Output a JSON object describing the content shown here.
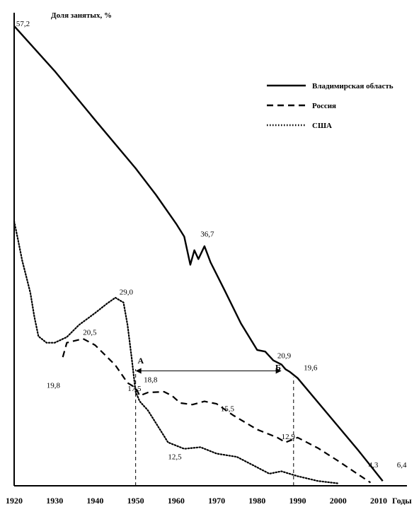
{
  "chart_data": {
    "type": "line",
    "title": "Доля занятых, %",
    "xlabel": "Годы",
    "xlim": [
      1920,
      2017
    ],
    "ylim": [
      0,
      58.5
    ],
    "xticks": [
      1920,
      1930,
      1940,
      1950,
      1960,
      1970,
      1980,
      1990,
      2000,
      2010
    ],
    "series": [
      {
        "name": "Владимирская область",
        "style": "solid",
        "color": "#000000",
        "points": [
          [
            1920,
            57.2
          ],
          [
            1930,
            51.6
          ],
          [
            1940,
            45.5
          ],
          [
            1950,
            39.5
          ],
          [
            1955,
            36.2
          ],
          [
            1960,
            32.6
          ],
          [
            1962,
            31.0
          ],
          [
            1963.5,
            27.5
          ],
          [
            1964.5,
            29.3
          ],
          [
            1965.5,
            28.2
          ],
          [
            1967,
            29.8
          ],
          [
            1968.5,
            27.8
          ],
          [
            1972,
            24.3
          ],
          [
            1976,
            20.2
          ],
          [
            1980,
            16.9
          ],
          [
            1982,
            16.7
          ],
          [
            1984,
            15.6
          ],
          [
            1986,
            15.1
          ],
          [
            1987,
            14.5
          ],
          [
            1988,
            14.2
          ],
          [
            1990,
            13.4
          ],
          [
            2000,
            7.4
          ],
          [
            2005,
            4.4
          ],
          [
            2011,
            0.6
          ]
        ]
      },
      {
        "name": "Россия",
        "style": "dashed",
        "color": "#000000",
        "points": [
          [
            1932,
            16.0
          ],
          [
            1933,
            17.8
          ],
          [
            1937,
            18.3
          ],
          [
            1940,
            17.5
          ],
          [
            1945,
            15.0
          ],
          [
            1948,
            12.8
          ],
          [
            1950,
            12.2
          ],
          [
            1951,
            11.2
          ],
          [
            1953,
            11.6
          ],
          [
            1957,
            11.7
          ],
          [
            1959,
            11.2
          ],
          [
            1961,
            10.3
          ],
          [
            1964,
            10.1
          ],
          [
            1967,
            10.5
          ],
          [
            1970,
            10.2
          ],
          [
            1974,
            8.8
          ],
          [
            1980,
            7.0
          ],
          [
            1985,
            6.0
          ],
          [
            1987,
            5.4
          ],
          [
            1990,
            6.0
          ],
          [
            1995,
            4.7
          ],
          [
            2000,
            3.1
          ],
          [
            2005,
            1.4
          ],
          [
            2008,
            0.4
          ]
        ]
      },
      {
        "name": "США",
        "style": "dotted",
        "color": "#000000",
        "points": [
          [
            1920,
            32.9
          ],
          [
            1921,
            30.5
          ],
          [
            1922,
            28.0
          ],
          [
            1923,
            26.0
          ],
          [
            1924,
            24.0
          ],
          [
            1925,
            21.0
          ],
          [
            1926,
            18.6
          ],
          [
            1928,
            17.8
          ],
          [
            1930,
            17.8
          ],
          [
            1933,
            18.5
          ],
          [
            1936,
            20.0
          ],
          [
            1940,
            21.5
          ],
          [
            1943,
            22.7
          ],
          [
            1945,
            23.4
          ],
          [
            1947,
            22.8
          ],
          [
            1948,
            20.0
          ],
          [
            1949,
            16.0
          ],
          [
            1950,
            11.7
          ],
          [
            1951,
            10.5
          ],
          [
            1953,
            9.4
          ],
          [
            1955,
            7.8
          ],
          [
            1958,
            5.4
          ],
          [
            1962,
            4.6
          ],
          [
            1966,
            4.8
          ],
          [
            1970,
            4.0
          ],
          [
            1975,
            3.6
          ],
          [
            1980,
            2.3
          ],
          [
            1983,
            1.5
          ],
          [
            1986,
            1.8
          ],
          [
            1990,
            1.2
          ],
          [
            1995,
            0.6
          ],
          [
            2000,
            0.3
          ]
        ]
      }
    ],
    "annotations": [
      {
        "text": "57,2",
        "x": 1920.5,
        "y": 57.2
      },
      {
        "text": "36,7",
        "x": 1966,
        "y": 31.0
      },
      {
        "text": "29,0",
        "x": 1946,
        "y": 23.8
      },
      {
        "text": "20,5",
        "x": 1937,
        "y": 18.8
      },
      {
        "text": "19,8",
        "x": 1928,
        "y": 12.2
      },
      {
        "text": "17,5",
        "x": 1948,
        "y": 11.8
      },
      {
        "text": "18,8",
        "x": 1952,
        "y": 12.9
      },
      {
        "text": "15,5",
        "x": 1971,
        "y": 9.3
      },
      {
        "text": "12,9",
        "x": 1986,
        "y": 5.8
      },
      {
        "text": "12,5",
        "x": 1958,
        "y": 3.3
      },
      {
        "text": "20,9",
        "x": 1985,
        "y": 15.9
      },
      {
        "text": "19,6",
        "x": 1991.5,
        "y": 14.4
      },
      {
        "text": "4,3",
        "x": 2007.5,
        "y": 2.3
      },
      {
        "text": "6,4",
        "x": 2014.5,
        "y": 2.3
      }
    ],
    "marker_labels": [
      {
        "text": "А",
        "x": 1950.5,
        "y": 15.2
      },
      {
        "text": "Б",
        "x": 1984.5,
        "y": 14.4
      }
    ],
    "arrow": {
      "from": [
        1950,
        14.3
      ],
      "to": [
        1986,
        14.3
      ],
      "style": "double-headed"
    },
    "reference_lines": [
      {
        "x": 1950,
        "from_y": 0,
        "to_y": 14.5,
        "style": "dashed"
      },
      {
        "x": 1989,
        "from_y": 0,
        "to_y": 13.5,
        "style": "dashed"
      }
    ],
    "legend": {
      "placement": "top-right"
    },
    "grid": false
  }
}
